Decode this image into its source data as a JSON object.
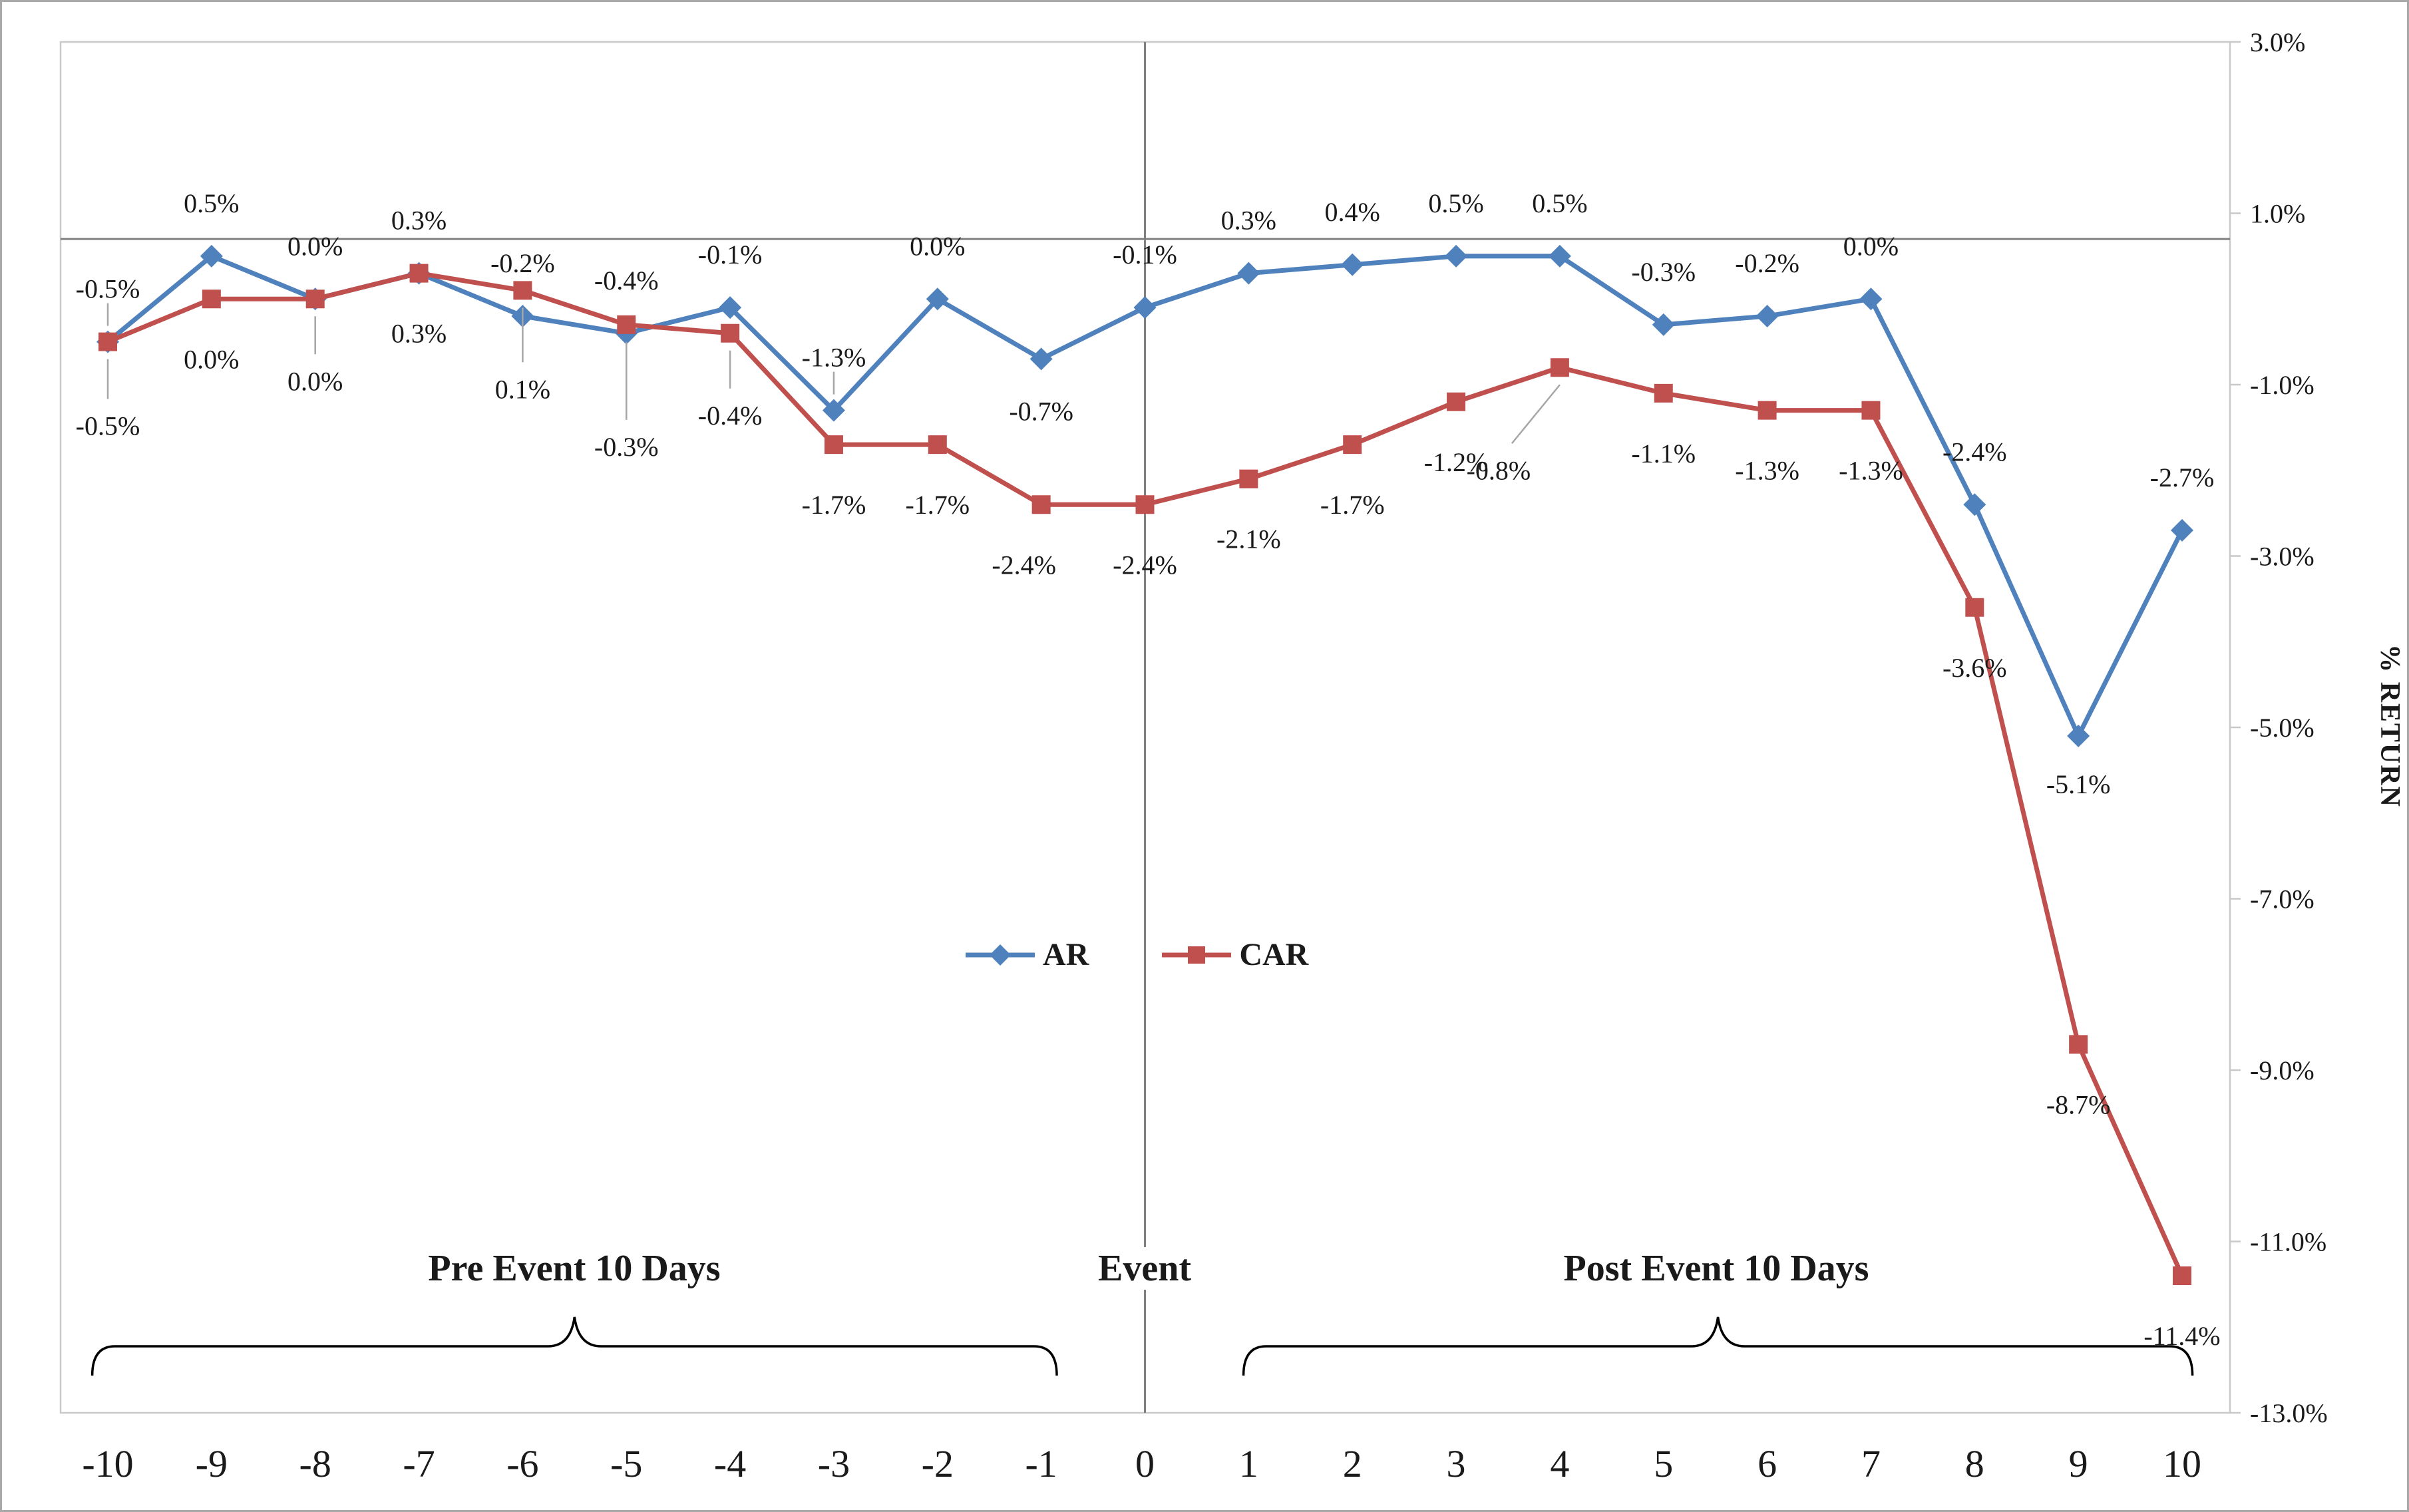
{
  "chart_data": {
    "type": "line",
    "title": "",
    "xlabel": "",
    "ylabel": "% RETURN",
    "x": [
      -10,
      -9,
      -8,
      -7,
      -6,
      -5,
      -4,
      -3,
      -2,
      -1,
      0,
      1,
      2,
      3,
      4,
      5,
      6,
      7,
      8,
      9,
      10
    ],
    "x_labels": [
      "-10",
      "-9",
      "-8",
      "-7",
      "-6",
      "-5",
      "-4",
      "-3",
      "-2",
      "-1",
      "0",
      "1",
      "2",
      "3",
      "4",
      "5",
      "6",
      "7",
      "8",
      "9",
      "10"
    ],
    "ylim": [
      -13,
      3
    ],
    "y_tick_values": [
      3,
      1,
      -1,
      -3,
      -5,
      -7,
      -9,
      -11,
      -13
    ],
    "y_tick_labels": [
      "3.0%",
      "1.0%",
      "-1.0%",
      "-3.0%",
      "-5.0%",
      "-7.0%",
      "-9.0%",
      "-11.0%",
      "-13.0%"
    ],
    "reference_line_value": 0.7,
    "event_line_x": 0,
    "legend_position": "center-middle",
    "series": [
      {
        "name": "AR",
        "color": "#4F81BD",
        "marker": "diamond",
        "values": [
          -0.5,
          0.5,
          0.0,
          0.3,
          -0.2,
          -0.4,
          -0.1,
          -1.3,
          0.0,
          -0.7,
          -0.1,
          0.3,
          0.4,
          0.5,
          0.5,
          -0.3,
          -0.2,
          0.0,
          -2.4,
          -5.1,
          -2.7
        ],
        "labels": [
          "-0.5%",
          "0.5%",
          "0.0%",
          "0.3%",
          "-0.2%",
          "-0.4%",
          "-0.1%",
          "-1.3%",
          "0.0%",
          "-0.7%",
          "-0.1%",
          "0.3%",
          "0.4%",
          "0.5%",
          "0.5%",
          "-0.3%",
          "-0.2%",
          "0.0%",
          "-2.4%",
          "-5.1%",
          "-2.7%"
        ]
      },
      {
        "name": "CAR",
        "color": "#C0504D",
        "marker": "square",
        "values": [
          -0.5,
          0.0,
          0.0,
          0.3,
          0.1,
          -0.3,
          -0.4,
          -1.7,
          -1.7,
          -2.4,
          -2.4,
          -2.1,
          -1.7,
          -1.2,
          -0.8,
          -1.1,
          -1.3,
          -1.3,
          -3.6,
          -8.7,
          -11.4
        ],
        "labels": [
          "-0.5%",
          "0.0%",
          "0.0%",
          "0.3%",
          "0.1%",
          "-0.3%",
          "-0.4%",
          "-1.7%",
          "-1.7%",
          "-2.4%",
          "-2.4%",
          "-2.1%",
          "-1.7%",
          "-1.2%",
          "-0.8%",
          "-1.1%",
          "-1.3%",
          "-1.3%",
          "-3.6%",
          "-8.7%",
          "-11.4%"
        ]
      }
    ],
    "annotations": [
      {
        "text": "Pre Event 10 Days",
        "center_day": -5.5,
        "brace_from_day": -10.15,
        "brace_to_day": -0.85
      },
      {
        "text": "Event",
        "center_day": 0
      },
      {
        "text": "Post Event 10 Days",
        "center_day": 5.5,
        "brace_from_day": 0.95,
        "brace_to_day": 10.1
      }
    ],
    "layout_hints": {
      "label_dy_default": {
        "AR": -80,
        "CAR": 90
      },
      "label_dy_overrides": {
        "AR": {
          "-1": 78,
          "9": 72
        },
        "CAR": {
          "-10": 126,
          "-8": 123,
          "-6": 148,
          "-5": 183,
          "-4": 123,
          "4": 154
        }
      },
      "label_dx_overrides": {
        "AR": {},
        "CAR": {
          "-1": -26,
          "4": -92
        }
      },
      "leader_lines": {
        "AR": [
          -10,
          -3
        ],
        "CAR": [
          -10,
          -8,
          -6,
          -5,
          -4,
          4
        ]
      }
    }
  },
  "style": {
    "background": "#ffffff",
    "figure_border": "#a8a8a8",
    "plot_border": "#c9c9c9",
    "axis_line": "#808080",
    "leader_line": "#a6a6a6",
    "brace_color": "#000000",
    "text": "#1a1a1a"
  }
}
